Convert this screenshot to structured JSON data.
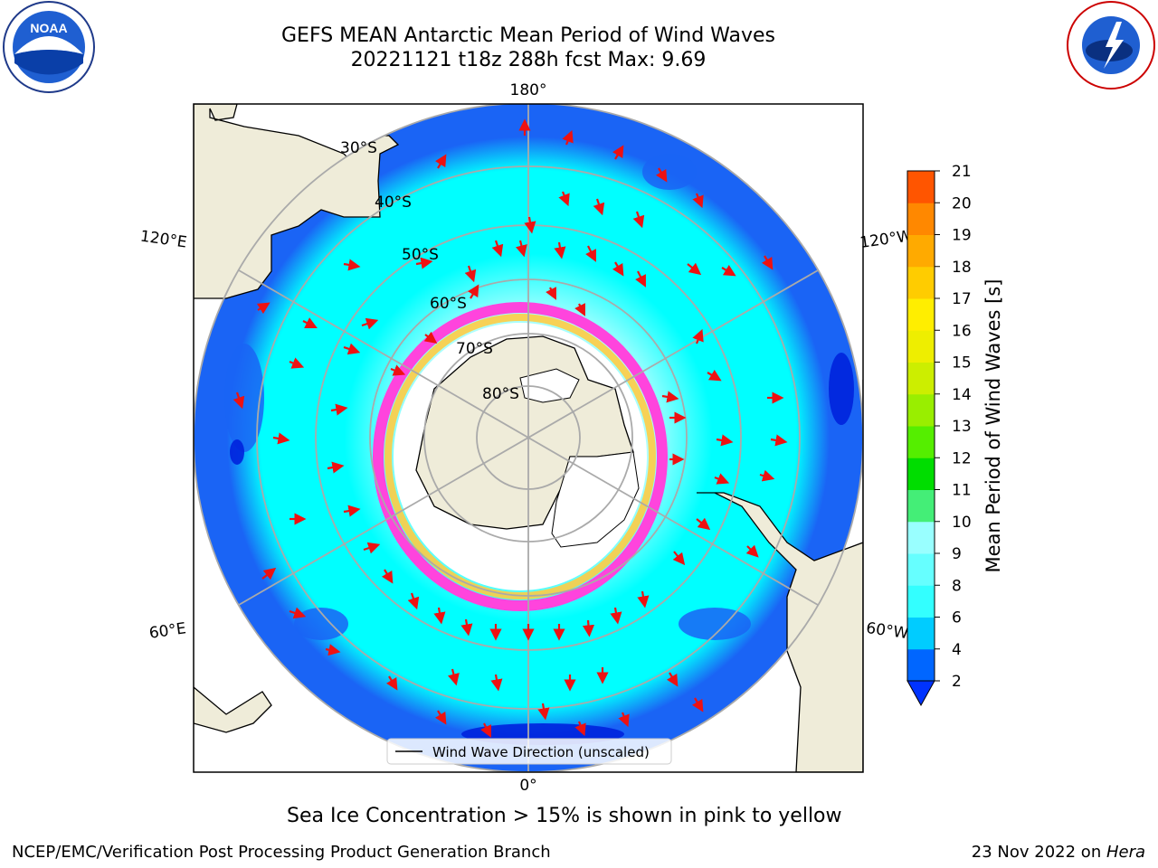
{
  "header": {
    "title_line1": "GEFS MEAN Antarctic Mean Period of Wind Waves",
    "title_line2": "20221121 t18z 288h fcst   Max: 9.69"
  },
  "logos": {
    "left": {
      "text": "NOAA",
      "ring_text": "NATIONAL OCEANIC AND ATMOSPHERIC ADMINISTRATION · U.S. DEPARTMENT OF COMMERCE"
    },
    "right": {
      "ring_text": "NATIONAL WEATHER SERVICE"
    }
  },
  "map": {
    "longitude_labels": {
      "top": "180°",
      "bottom": "0°",
      "upper_left": "120°E",
      "upper_right": "120°W",
      "lower_left": "60°E",
      "lower_right": "60°W"
    },
    "latitude_labels": [
      "30°S",
      "40°S",
      "50°S",
      "60°S",
      "70°S",
      "80°S"
    ],
    "legend_label": "Wind Wave Direction (unscaled)",
    "colors": {
      "ocean_far": "#1a64f5",
      "ocean_mid": "#00ffff",
      "ocean_near": "#b0ffff",
      "land": "#efecd9",
      "ice_edge_pink": "#ff44dd",
      "ice_edge_yellow": "#ffcc44",
      "arrow": "#ee1111"
    }
  },
  "colorbar": {
    "label": "Mean Period of Wind Waves [s]",
    "ticks": [
      "2",
      "4",
      "6",
      "8",
      "9",
      "10",
      "11",
      "12",
      "13",
      "14",
      "15",
      "16",
      "17",
      "18",
      "19",
      "20",
      "21"
    ],
    "colors": [
      "#0066ff",
      "#00ccff",
      "#33ffff",
      "#66ffff",
      "#99ffff",
      "#44ee77",
      "#00dd00",
      "#55ee00",
      "#99ee00",
      "#ccee00",
      "#eeee00",
      "#ffee00",
      "#ffcc00",
      "#ffaa00",
      "#ff8800",
      "#ff5500",
      "#ff2200",
      "#ff0000"
    ],
    "under_color": "#0033ff"
  },
  "caption": "Sea Ice Concentration > 15% is shown in pink to yellow",
  "footer": {
    "left": "NCEP/EMC/Verification Post Processing Product Generation Branch",
    "right_prefix": "23 Nov 2022 on ",
    "right_italic": "Hera"
  }
}
